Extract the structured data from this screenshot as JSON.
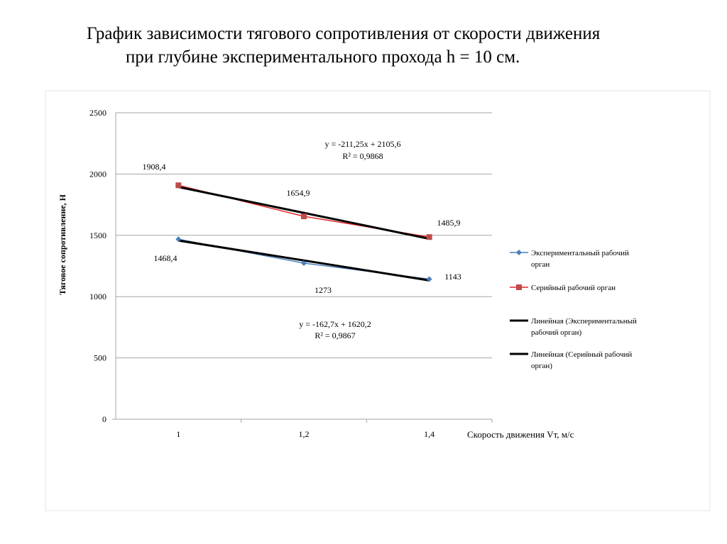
{
  "title_line1": "График зависимости тягового сопротивления от скорости движения",
  "title_line2": "при глубине экспериментального прохода h = 10 см.",
  "chart_data": {
    "type": "line",
    "xlabel": "Скорость движения Vт, м/с",
    "ylabel": "Тяговое сопротивление, Н",
    "categories": [
      "1",
      "1,2",
      "1,4"
    ],
    "ylim": [
      0,
      2500
    ],
    "yticks": [
      "0",
      "500",
      "1000",
      "1500",
      "2000",
      "2500"
    ],
    "grid": "horizontal",
    "legend_position": "right",
    "series": [
      {
        "name": "Экспериментальный рабочий орган",
        "values": [
          1468.4,
          1273,
          1143
        ],
        "labels": [
          "1468,4",
          "1273",
          "1143"
        ],
        "color": "#4a7ebb",
        "marker": "diamond"
      },
      {
        "name": "Серийный рабочий орган",
        "values": [
          1908.4,
          1654.9,
          1485.9
        ],
        "labels": [
          "1908,4",
          "1654,9",
          "1485,9"
        ],
        "color": "#e3262b",
        "marker_color": "#be4b48",
        "marker": "square"
      }
    ],
    "trendlines": [
      {
        "name": "Линейная (Экспериментальный рабочий орган)",
        "slope": -162.7,
        "intercept": 1620.2,
        "equation": "y = -162,7x + 1620,2",
        "r2": "R² = 0,9867",
        "color": "#000000"
      },
      {
        "name": "Линейная (Серийный рабочий орган)",
        "slope": -211.25,
        "intercept": 2105.6,
        "equation": "y = -211,25x + 2105,6",
        "r2": "R² = 0,9868",
        "color": "#000000"
      }
    ]
  }
}
